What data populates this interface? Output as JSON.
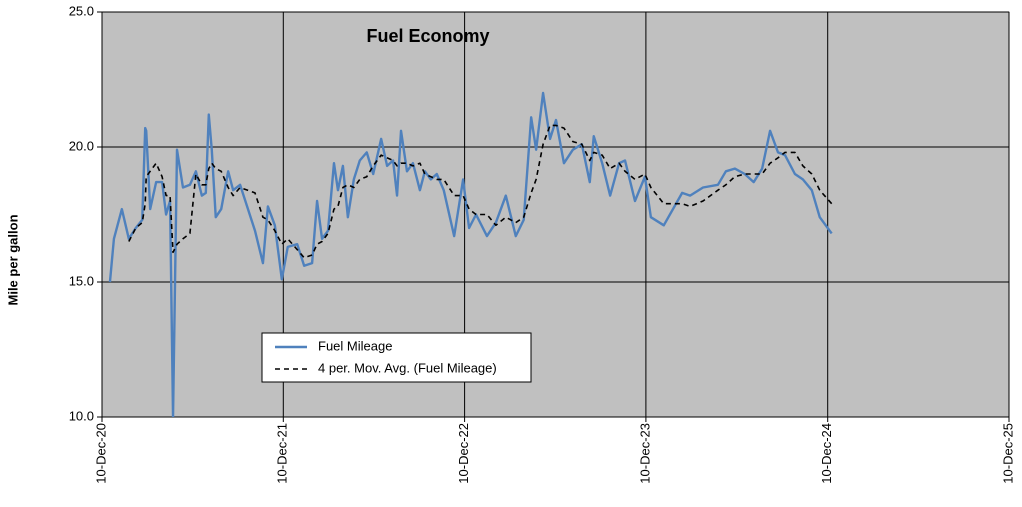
{
  "chart_data": {
    "type": "line",
    "title": "Fuel Economy",
    "y_label": "Mile per gallon",
    "x": [
      "2020-12-26",
      "2021-01-03",
      "2021-01-19",
      "2021-02-02",
      "2021-02-16",
      "2021-03-01",
      "2021-03-07",
      "2021-03-09",
      "2021-03-17",
      "2021-03-29",
      "2021-04-10",
      "2021-04-18",
      "2021-04-26",
      "2021-05-02",
      "2021-05-10",
      "2021-05-22",
      "2021-06-05",
      "2021-06-17",
      "2021-06-29",
      "2021-07-07",
      "2021-07-13",
      "2021-07-19",
      "2021-07-27",
      "2021-08-07",
      "2021-08-21",
      "2021-08-31",
      "2021-09-14",
      "2021-10-14",
      "2021-10-30",
      "2021-11-09",
      "2021-11-23",
      "2021-12-07",
      "2021-12-19",
      "2022-01-07",
      "2022-01-21",
      "2022-02-06",
      "2022-02-16",
      "2022-02-26",
      "2022-03-10",
      "2022-03-22",
      "2022-03-30",
      "2022-04-09",
      "2022-04-19",
      "2022-05-01",
      "2022-05-13",
      "2022-05-27",
      "2022-06-09",
      "2022-06-25",
      "2022-07-07",
      "2022-07-19",
      "2022-07-27",
      "2022-08-04",
      "2022-08-16",
      "2022-08-28",
      "2022-09-11",
      "2022-09-21",
      "2022-10-03",
      "2022-10-15",
      "2022-10-29",
      "2022-11-19",
      "2022-12-07",
      "2022-12-19",
      "2023-01-02",
      "2023-01-24",
      "2023-02-11",
      "2023-03-03",
      "2023-03-23",
      "2023-04-08",
      "2023-04-23",
      "2023-05-03",
      "2023-05-17",
      "2023-05-31",
      "2023-06-12",
      "2023-06-28",
      "2023-07-16",
      "2023-08-03",
      "2023-08-19",
      "2023-08-27",
      "2023-09-13",
      "2023-09-29",
      "2023-10-17",
      "2023-10-29",
      "2023-11-18",
      "2023-12-08",
      "2023-12-20",
      "2024-01-15",
      "2024-02-21",
      "2024-03-08",
      "2024-04-03",
      "2024-05-03",
      "2024-05-19",
      "2024-06-06",
      "2024-06-26",
      "2024-07-14",
      "2024-07-31",
      "2024-08-16",
      "2024-09-01",
      "2024-09-15",
      "2024-10-05",
      "2024-10-21",
      "2024-11-08",
      "2024-11-24",
      "2024-12-18"
    ],
    "series": [
      {
        "name": "Fuel Mileage",
        "color": "#4f81bd",
        "style": "solid",
        "values": [
          15.0,
          16.6,
          17.7,
          16.6,
          17.0,
          17.3,
          20.7,
          20.6,
          17.7,
          18.7,
          18.7,
          17.5,
          18.0,
          10.0,
          19.9,
          18.5,
          18.6,
          19.1,
          18.2,
          18.3,
          21.2,
          19.9,
          17.4,
          17.7,
          19.1,
          18.4,
          18.6,
          16.9,
          15.7,
          17.8,
          17.1,
          15.1,
          16.3,
          16.4,
          15.6,
          15.7,
          18.0,
          16.6,
          16.9,
          19.4,
          18.4,
          19.3,
          17.4,
          18.8,
          19.5,
          19.8,
          19.0,
          20.3,
          19.3,
          19.5,
          18.2,
          20.6,
          19.1,
          19.4,
          18.4,
          19.1,
          18.8,
          19.0,
          18.4,
          16.7,
          18.8,
          17.0,
          17.5,
          16.7,
          17.2,
          18.2,
          16.7,
          17.3,
          21.1,
          19.9,
          22.0,
          20.3,
          21.0,
          19.4,
          19.9,
          20.1,
          18.7,
          20.4,
          19.4,
          18.2,
          19.4,
          19.5,
          18.0,
          18.9,
          17.4,
          17.1,
          18.3,
          18.2,
          18.5,
          18.6,
          19.1,
          19.2,
          19.0,
          18.7,
          19.2,
          20.6,
          19.8,
          19.7,
          19.0,
          18.8,
          18.4,
          17.4,
          16.8
        ]
      },
      {
        "name": "4 per. Mov. Avg. (Fuel Mileage)",
        "color": "#000000",
        "style": "dashed",
        "values": [
          null,
          null,
          null,
          16.5,
          17.0,
          17.2,
          17.9,
          18.9,
          19.1,
          19.4,
          18.9,
          18.2,
          18.2,
          16.1,
          16.4,
          16.6,
          16.8,
          19.0,
          18.6,
          18.6,
          19.2,
          19.4,
          19.2,
          19.1,
          18.5,
          18.2,
          18.5,
          18.3,
          17.4,
          17.3,
          16.9,
          16.4,
          16.6,
          16.2,
          15.9,
          16.0,
          16.4,
          16.5,
          16.8,
          17.7,
          17.8,
          18.5,
          18.6,
          18.5,
          18.8,
          18.9,
          19.3,
          19.7,
          19.6,
          19.5,
          19.3,
          19.4,
          19.4,
          19.3,
          19.4,
          19.0,
          18.9,
          18.8,
          18.8,
          18.2,
          18.2,
          17.7,
          17.5,
          17.5,
          17.1,
          17.4,
          17.2,
          17.4,
          18.3,
          18.8,
          20.1,
          20.8,
          20.8,
          20.7,
          20.2,
          20.1,
          19.5,
          19.8,
          19.7,
          19.2,
          19.4,
          19.1,
          18.8,
          19.0,
          18.5,
          17.9,
          17.9,
          17.8,
          18.0,
          18.4,
          18.6,
          18.9,
          19.0,
          19.0,
          19.0,
          19.4,
          19.6,
          19.8,
          19.8,
          19.3,
          19.0,
          18.4,
          17.9
        ]
      }
    ],
    "xlim": [
      "2020-12-10",
      "2025-12-10"
    ],
    "xticks": [
      {
        "value": "2020-12-10",
        "label": "10-Dec-20"
      },
      {
        "value": "2021-12-10",
        "label": "10-Dec-21"
      },
      {
        "value": "2022-12-10",
        "label": "10-Dec-22"
      },
      {
        "value": "2023-12-10",
        "label": "10-Dec-23"
      },
      {
        "value": "2024-12-10",
        "label": "10-Dec-24"
      },
      {
        "value": "2025-12-10",
        "label": "10-Dec-25"
      }
    ],
    "ylim": [
      10,
      25
    ],
    "yticks": [
      {
        "value": 10,
        "label": "10.0"
      },
      {
        "value": 15,
        "label": "15.0"
      },
      {
        "value": 20,
        "label": "20.0"
      },
      {
        "value": 25,
        "label": "25.0"
      }
    ],
    "grid": true,
    "legend": "inside"
  }
}
